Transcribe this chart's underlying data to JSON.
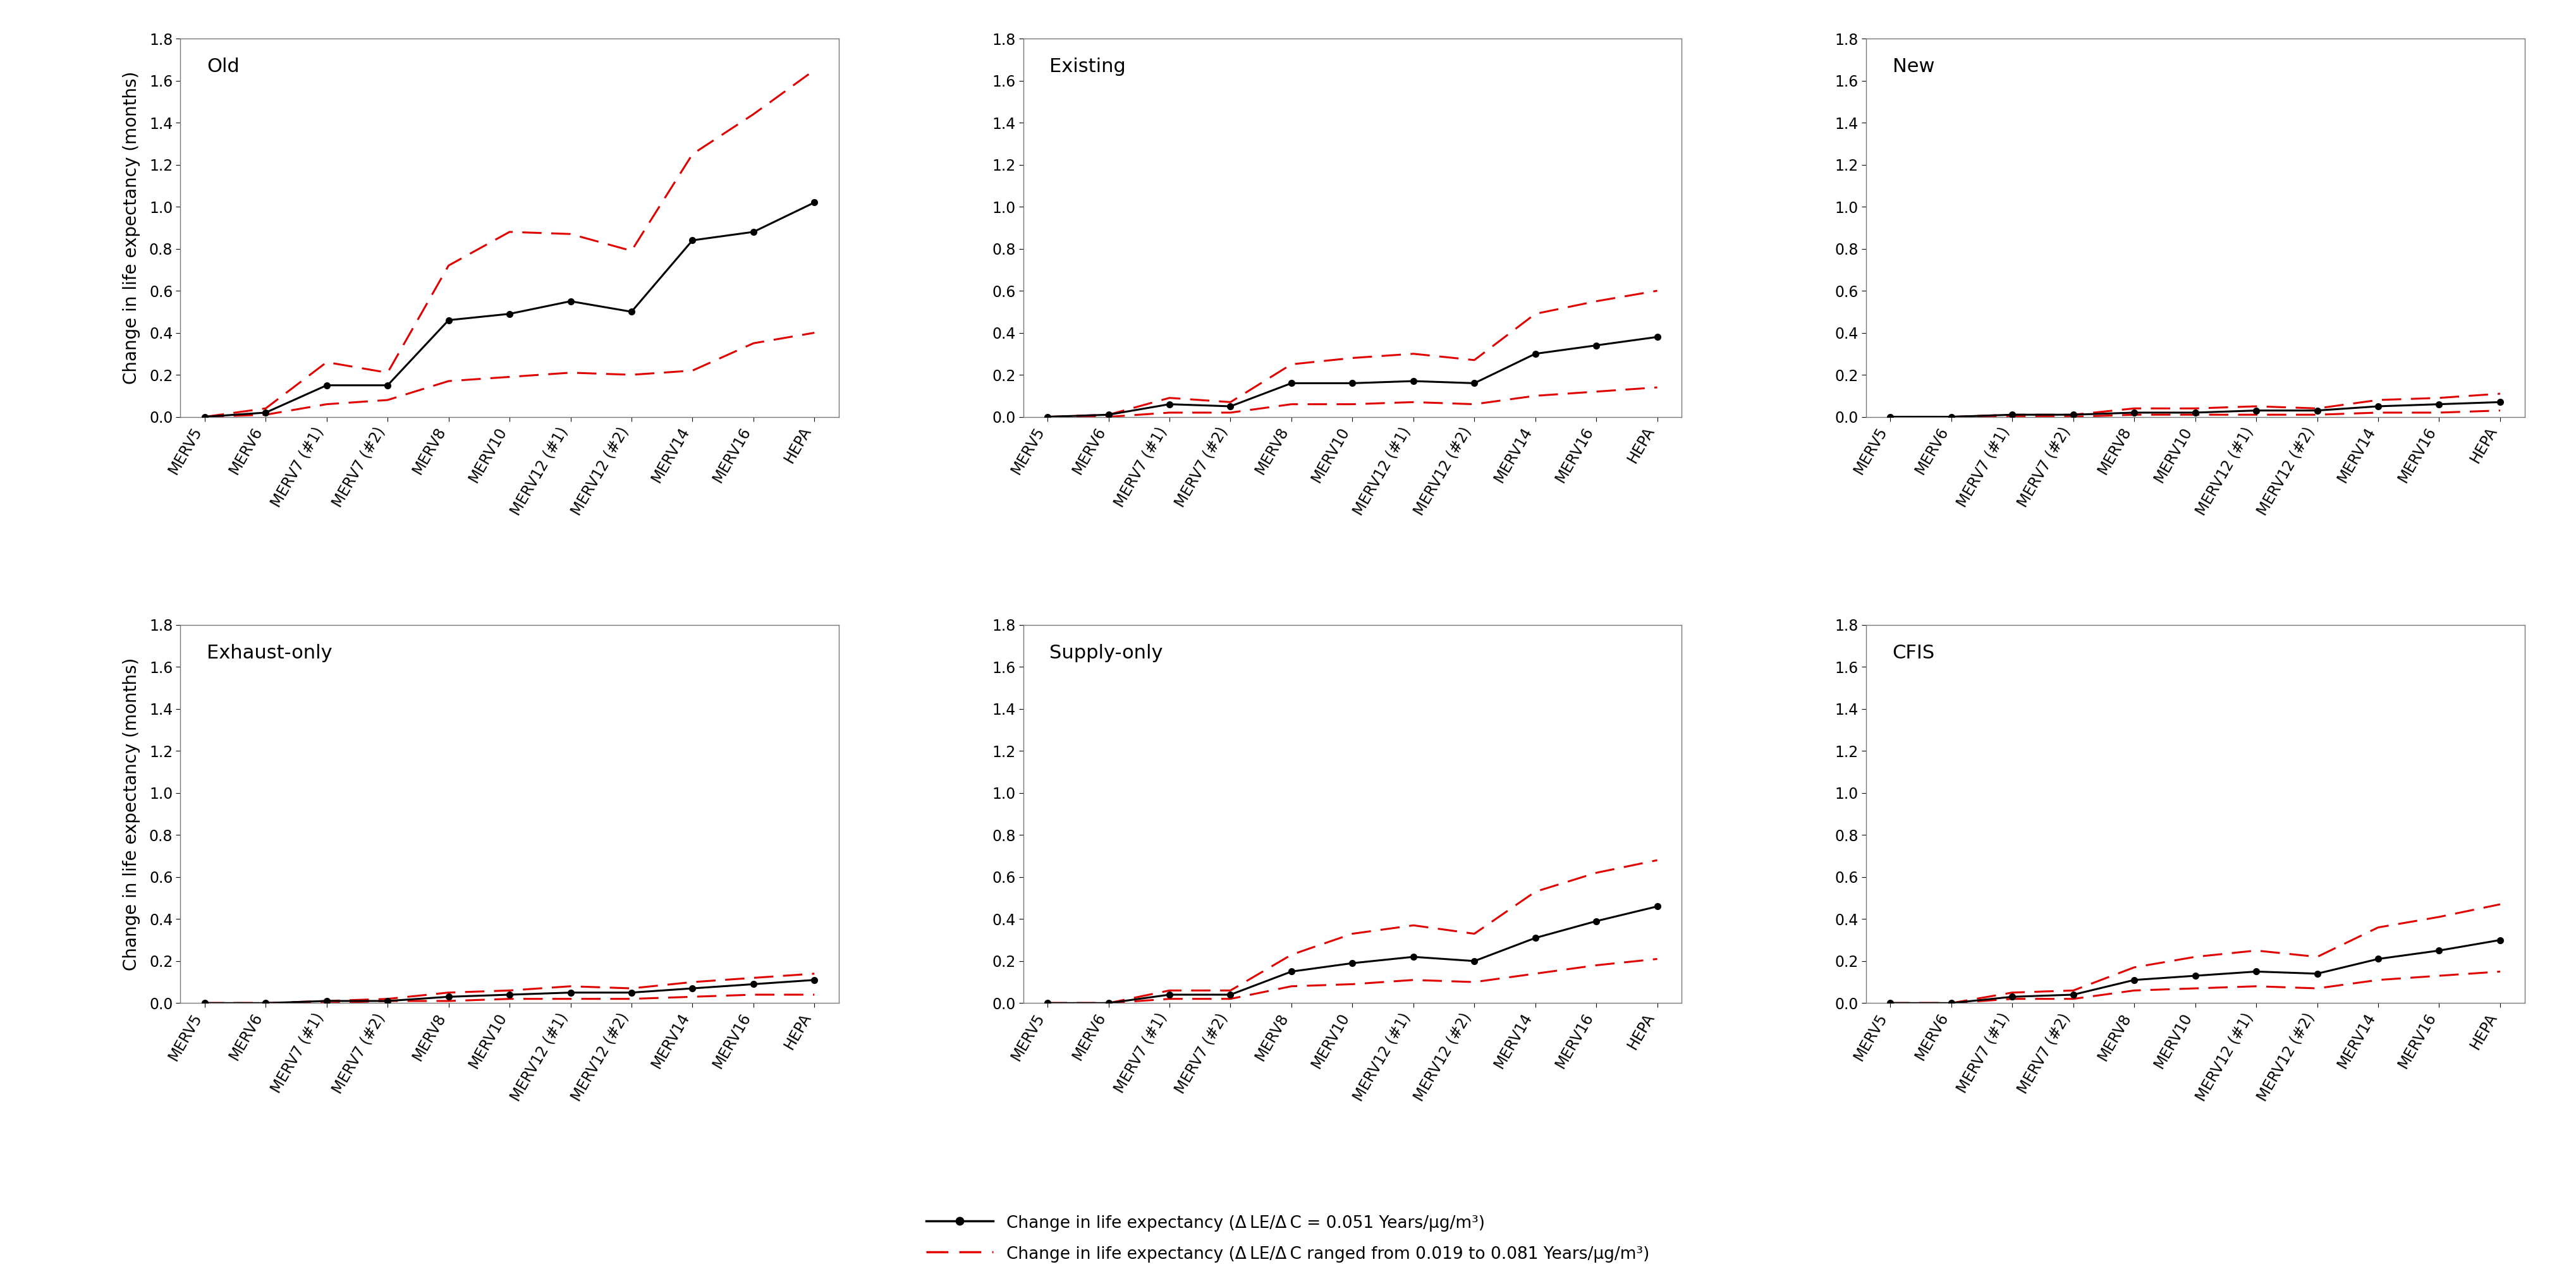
{
  "subplots": [
    {
      "title": "Old",
      "central": [
        0.0,
        0.02,
        0.15,
        0.15,
        0.46,
        0.49,
        0.55,
        0.5,
        0.84,
        0.88,
        1.02
      ],
      "upper": [
        0.0,
        0.04,
        0.26,
        0.21,
        0.72,
        0.88,
        0.87,
        0.79,
        1.25,
        1.44,
        1.65
      ],
      "lower": [
        0.0,
        0.01,
        0.06,
        0.08,
        0.17,
        0.19,
        0.21,
        0.2,
        0.22,
        0.35,
        0.4
      ]
    },
    {
      "title": "Existing",
      "central": [
        0.0,
        0.01,
        0.06,
        0.05,
        0.16,
        0.16,
        0.17,
        0.16,
        0.3,
        0.34,
        0.38
      ],
      "upper": [
        0.0,
        0.01,
        0.09,
        0.07,
        0.25,
        0.28,
        0.3,
        0.27,
        0.49,
        0.55,
        0.6
      ],
      "lower": [
        0.0,
        0.0,
        0.02,
        0.02,
        0.06,
        0.06,
        0.07,
        0.06,
        0.1,
        0.12,
        0.14
      ]
    },
    {
      "title": "New",
      "central": [
        0.0,
        0.0,
        0.01,
        0.01,
        0.02,
        0.02,
        0.03,
        0.03,
        0.05,
        0.06,
        0.07
      ],
      "upper": [
        0.0,
        0.0,
        0.01,
        0.01,
        0.04,
        0.04,
        0.05,
        0.04,
        0.08,
        0.09,
        0.11
      ],
      "lower": [
        0.0,
        0.0,
        0.0,
        0.0,
        0.01,
        0.01,
        0.01,
        0.01,
        0.02,
        0.02,
        0.03
      ]
    },
    {
      "title": "Exhaust-only",
      "central": [
        0.0,
        0.0,
        0.01,
        0.01,
        0.03,
        0.04,
        0.05,
        0.05,
        0.07,
        0.09,
        0.11
      ],
      "upper": [
        0.0,
        0.0,
        0.01,
        0.02,
        0.05,
        0.06,
        0.08,
        0.07,
        0.1,
        0.12,
        0.14
      ],
      "lower": [
        0.0,
        0.0,
        0.0,
        0.01,
        0.01,
        0.02,
        0.02,
        0.02,
        0.03,
        0.04,
        0.04
      ]
    },
    {
      "title": "Supply-only",
      "central": [
        0.0,
        0.0,
        0.04,
        0.04,
        0.15,
        0.19,
        0.22,
        0.2,
        0.31,
        0.39,
        0.46
      ],
      "upper": [
        0.0,
        0.0,
        0.06,
        0.06,
        0.23,
        0.33,
        0.37,
        0.33,
        0.53,
        0.62,
        0.68
      ],
      "lower": [
        0.0,
        0.0,
        0.02,
        0.02,
        0.08,
        0.09,
        0.11,
        0.1,
        0.14,
        0.18,
        0.21
      ]
    },
    {
      "title": "CFIS",
      "central": [
        0.0,
        0.0,
        0.03,
        0.04,
        0.11,
        0.13,
        0.15,
        0.14,
        0.21,
        0.25,
        0.3
      ],
      "upper": [
        0.0,
        0.0,
        0.05,
        0.06,
        0.17,
        0.22,
        0.25,
        0.22,
        0.36,
        0.41,
        0.47
      ],
      "lower": [
        0.0,
        0.0,
        0.02,
        0.02,
        0.06,
        0.07,
        0.08,
        0.07,
        0.11,
        0.13,
        0.15
      ]
    }
  ],
  "xtick_labels": [
    "MERV5",
    "MERV6",
    "MERV7 (#1)",
    "MERV7 (#2)",
    "MERV8",
    "MERV10",
    "MERV12 (#1)",
    "MERV12 (#2)",
    "MERV14",
    "MERV16",
    "HEPA"
  ],
  "ylabel": "Change in life expectancy (months)",
  "ylim": [
    0.0,
    1.8
  ],
  "yticks": [
    0.0,
    0.2,
    0.4,
    0.6,
    0.8,
    1.0,
    1.2,
    1.4,
    1.6,
    1.8
  ],
  "legend_label_solid": "Change in life expectancy (Δ LE/Δ C = 0.051 Years/μg/m³)",
  "legend_label_dashed": "Change in life expectancy (Δ LE/Δ C ranged from 0.019 to 0.081 Years/μg/m³)",
  "black_color": "#000000",
  "red_color": "#e00000",
  "background_color": "#ffffff",
  "title_fontsize": 22,
  "axis_label_fontsize": 20,
  "tick_fontsize": 17,
  "legend_fontsize": 19,
  "linewidth": 2.2,
  "markersize": 7
}
